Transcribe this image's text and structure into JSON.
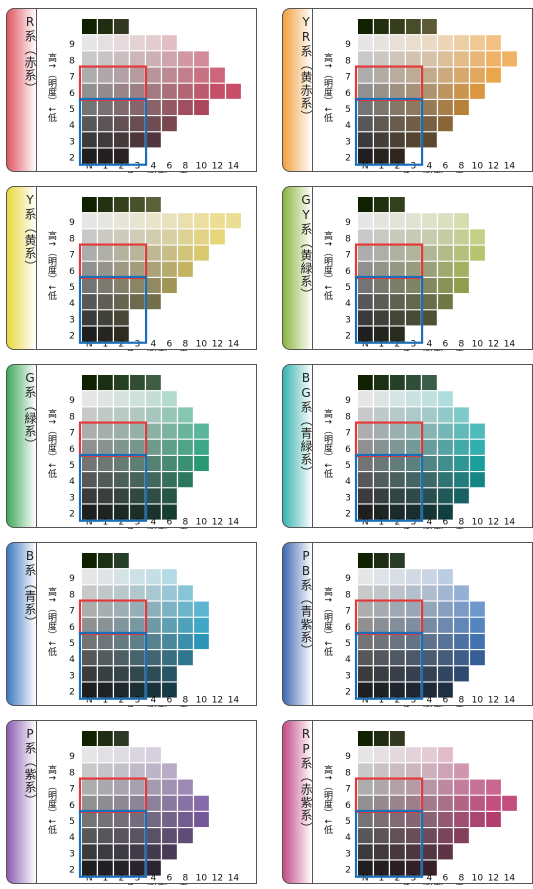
{
  "chart_data": [
    {
      "type": "heatmap",
      "hue": "R",
      "label": "R系（赤系）",
      "colors": {
        "tab": "#e05560",
        "a": "#c2405a",
        "b": "#ffd6d6"
      },
      "max_chroma": [
        2,
        4,
        6,
        10,
        14,
        12,
        10,
        6,
        2
      ]
    },
    {
      "type": "heatmap",
      "hue": "YR",
      "label": "YR系（黄赤系）",
      "colors": {
        "tab": "#f2a040",
        "a": "#e8901f",
        "b": "#fff0d6"
      },
      "max_chroma": [
        2,
        4,
        6,
        8,
        10,
        12,
        14,
        12,
        4
      ]
    },
    {
      "type": "heatmap",
      "hue": "Y",
      "label": "Y系（黄系）",
      "colors": {
        "tab": "#e8d840",
        "a": "#dcc23a",
        "b": "#fffad6"
      },
      "max_chroma": [
        2,
        2,
        4,
        6,
        8,
        10,
        12,
        14,
        4
      ]
    },
    {
      "type": "heatmap",
      "hue": "GY",
      "label": "GY系（黄緑系）",
      "colors": {
        "tab": "#8cb440",
        "a": "#a7bd3c",
        "b": "#eef7d6"
      },
      "max_chroma": [
        2,
        4,
        6,
        8,
        8,
        10,
        10,
        8,
        2
      ]
    },
    {
      "type": "heatmap",
      "hue": "G",
      "label": "G系（緑系）",
      "colors": {
        "tab": "#3fa85a",
        "a": "#1ba77c",
        "b": "#dff4ea"
      },
      "max_chroma": [
        6,
        6,
        8,
        10,
        10,
        10,
        8,
        6,
        4
      ]
    },
    {
      "type": "heatmap",
      "hue": "BG",
      "label": "BG系（青緑系）",
      "colors": {
        "tab": "#38b2b0",
        "a": "#0ab0b0",
        "b": "#dff4f4"
      },
      "max_chroma": [
        6,
        8,
        10,
        10,
        10,
        10,
        8,
        6,
        4
      ]
    },
    {
      "type": "heatmap",
      "hue": "B",
      "label": "B系（青系）",
      "colors": {
        "tab": "#3d78c0",
        "a": "#1ea5d0",
        "b": "#ddeefa"
      },
      "max_chroma": [
        6,
        6,
        8,
        10,
        10,
        10,
        8,
        6,
        2
      ]
    },
    {
      "type": "heatmap",
      "hue": "PB",
      "label": "PB系（青紫系）",
      "colors": {
        "tab": "#3f68b2",
        "a": "#3a78c8",
        "b": "#e2eaf8"
      },
      "max_chroma": [
        6,
        8,
        10,
        10,
        10,
        10,
        8,
        6,
        2
      ]
    },
    {
      "type": "heatmap",
      "hue": "P",
      "label": "P系（紫系）",
      "colors": {
        "tab": "#8a5cb0",
        "a": "#7a56a8",
        "b": "#efe4f6"
      },
      "max_chroma": [
        4,
        6,
        8,
        10,
        10,
        8,
        6,
        4,
        2
      ]
    },
    {
      "type": "heatmap",
      "hue": "RP",
      "label": "RP系（赤紫系）",
      "colors": {
        "tab": "#c24c86",
        "a": "#bf3f76",
        "b": "#f8e0ec"
      },
      "max_chroma": [
        4,
        6,
        8,
        12,
        14,
        12,
        8,
        6,
        2
      ]
    }
  ],
  "axis": {
    "x_ticks": [
      "N",
      "1",
      "2",
      "3",
      "4",
      "6",
      "8",
      "10",
      "12",
      "14"
    ],
    "y_ticks": [
      "2",
      "3",
      "4",
      "5",
      "6",
      "7",
      "8",
      "9"
    ],
    "x_label": "低←（彩度）→高",
    "y_label": "高↑（明度）↓低"
  },
  "highlight_colors": {
    "red": "#e23a3a",
    "blue": "#1b6fb8"
  }
}
